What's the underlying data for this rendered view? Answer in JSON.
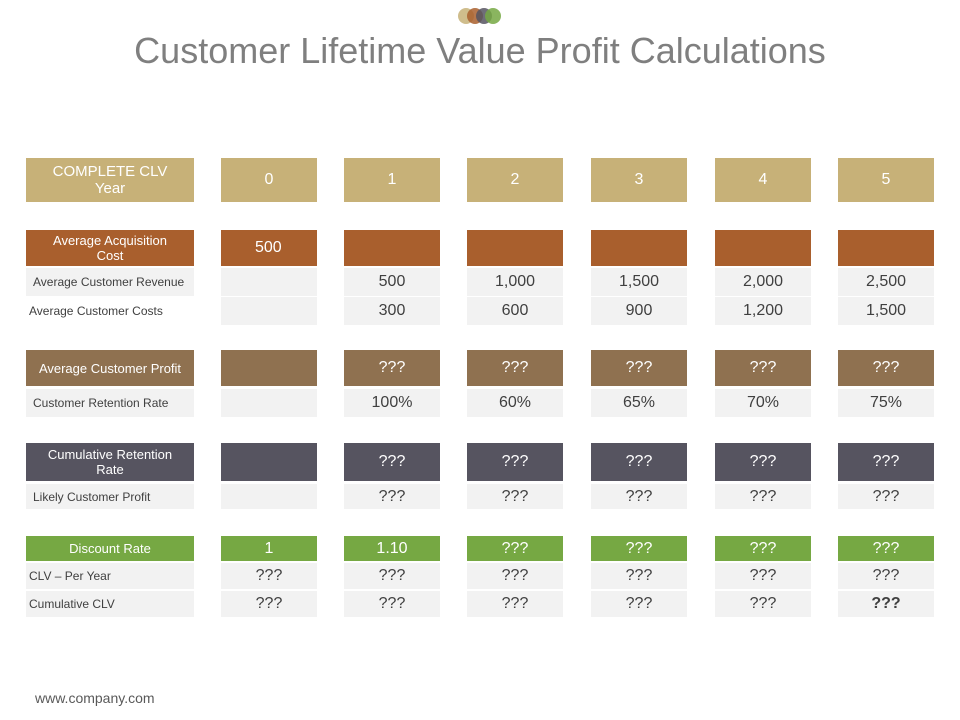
{
  "title": "Customer Lifetime Value Profit Calculations",
  "footer": "www.company.com",
  "header": {
    "label": "COMPLETE CLV Year",
    "years": [
      "0",
      "1",
      "2",
      "3",
      "4",
      "5"
    ]
  },
  "rows": {
    "acq": {
      "label": "Average Acquisition Cost",
      "values": [
        "500",
        "",
        "",
        "",
        "",
        ""
      ]
    },
    "rev": {
      "label": "Average Customer Revenue",
      "values": [
        "",
        "500",
        "1,000",
        "1,500",
        "2,000",
        "2,500"
      ]
    },
    "costs": {
      "label": "Average Customer Costs",
      "values": [
        "",
        "300",
        "600",
        "900",
        "1,200",
        "1,500"
      ]
    },
    "profit": {
      "label": "Average Customer Profit",
      "values": [
        "",
        "???",
        "???",
        "???",
        "???",
        "???"
      ]
    },
    "retention": {
      "label": "Customer Retention Rate",
      "values": [
        "",
        "100%",
        "60%",
        "65%",
        "70%",
        "75%"
      ]
    },
    "cumret": {
      "label": "Cumulative Retention Rate",
      "values": [
        "",
        "???",
        "???",
        "???",
        "???",
        "???"
      ]
    },
    "likely": {
      "label": "Likely Customer Profit",
      "values": [
        "",
        "???",
        "???",
        "???",
        "???",
        "???"
      ]
    },
    "discount": {
      "label": "Discount Rate",
      "values": [
        "1",
        "1.10",
        "???",
        "???",
        "???",
        "???"
      ]
    },
    "clvyear": {
      "label": "CLV – Per Year",
      "values": [
        "???",
        "???",
        "???",
        "???",
        "???",
        "???"
      ]
    },
    "cumclv": {
      "label": "Cumulative CLV",
      "values": [
        "???",
        "???",
        "???",
        "???",
        "???",
        "???"
      ]
    }
  }
}
